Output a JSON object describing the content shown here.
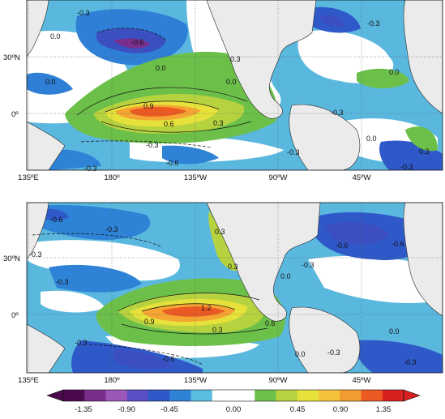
{
  "panels": [
    {
      "id": "top",
      "x_ticks": [
        "135ºE",
        "180º",
        "135ºW",
        "90ºW",
        "45ºW"
      ],
      "y_ticks": [
        "30ºN",
        "0º"
      ],
      "contour_labels": [
        "0.0",
        "-0.3",
        "0.0",
        "-0.6",
        "0.0",
        "0.3",
        "0.0",
        "0.9",
        "0.6",
        "0.3",
        "-0.3",
        "-0.6",
        "-0.3",
        "-0.3",
        "-0.3",
        "0.3",
        "0.0",
        "-0.3",
        "-0.3",
        "0.0"
      ]
    },
    {
      "id": "bottom",
      "x_ticks": [
        "135ºE",
        "180º",
        "135ºW",
        "90ºW",
        "45ºW"
      ],
      "y_ticks": [
        "30ºN",
        "0º"
      ],
      "contour_labels": [
        "-0.6",
        "-0.3",
        "-0.3",
        "-0.3",
        "0.3",
        "0.3",
        "-0.6",
        "-0.6",
        "-0.3",
        "1.2",
        "0.9",
        "0.6",
        "0.3",
        "-0.3",
        "-0.6",
        "0.0",
        "0.0",
        "-0.3",
        "0.0",
        "-0.3"
      ]
    }
  ],
  "colorbar": {
    "colors": [
      "#4b0a4e",
      "#7a2e8c",
      "#9b57b8",
      "#5a4fc4",
      "#2f59c9",
      "#2f83d6",
      "#59bde0",
      "#ffffff",
      "#ffffff",
      "#6cc04a",
      "#b7d23f",
      "#e6e23b",
      "#f5c23a",
      "#f29b2f",
      "#ec5a24",
      "#d82020"
    ],
    "tick_labels": [
      "-1.35",
      "-0.90",
      "-0.45",
      "0.00",
      "0.45",
      "0.90",
      "1.35"
    ]
  }
}
